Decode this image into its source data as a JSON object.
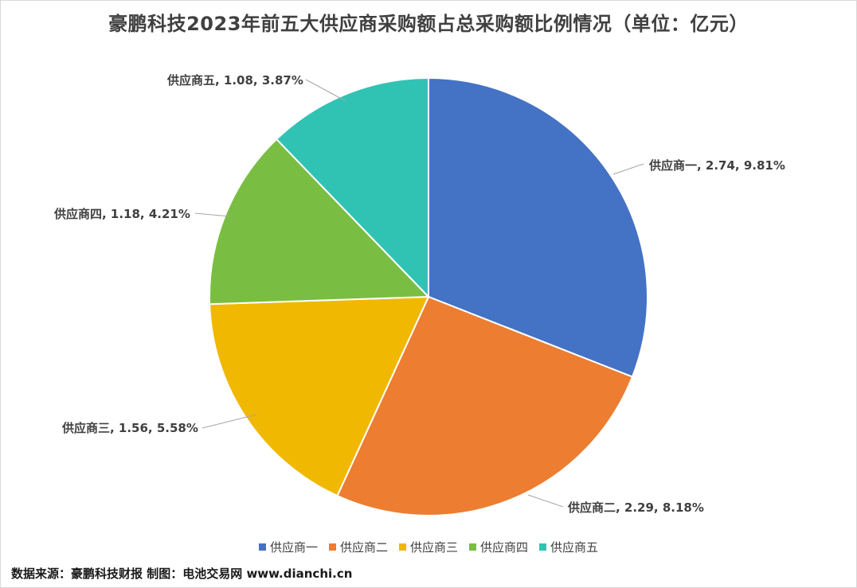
{
  "chart_data": {
    "type": "pie",
    "title": "豪鹏科技2023年前五大供应商采购额占总采购额比例情况（单位：亿元）",
    "categories": [
      "供应商一",
      "供应商二",
      "供应商三",
      "供应商四",
      "供应商五"
    ],
    "values": [
      2.74,
      2.29,
      1.56,
      1.18,
      1.08
    ],
    "percent_labels": [
      "9.81%",
      "8.18%",
      "5.58%",
      "4.21%",
      "3.87%"
    ],
    "data_labels": [
      "供应商一, 2.74, 9.81%",
      "供应商二, 2.29, 8.18%",
      "供应商三, 1.56, 5.58%",
      "供应商四, 1.18, 4.21%",
      "供应商五, 1.08, 3.87%"
    ],
    "colors": [
      "#4472c4",
      "#ed7d31",
      "#f0b800",
      "#79be42",
      "#30c3b4"
    ],
    "legend_position": "bottom",
    "start_angle": "top, clockwise"
  },
  "footer": {
    "source": "数据来源：豪鹏科技财报  制图：电池交易网 www.dianchi.cn"
  }
}
